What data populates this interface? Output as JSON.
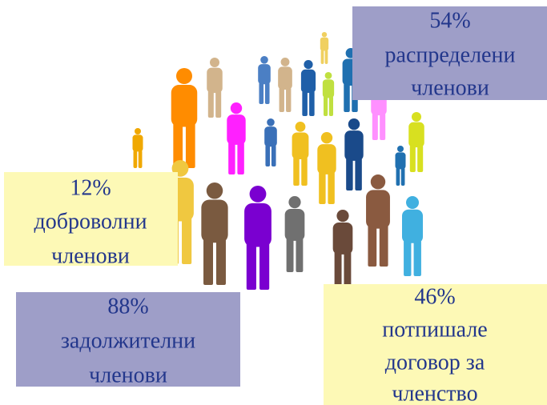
{
  "boxes": [
    {
      "lines": [
        "54%",
        "распределени",
        "членови"
      ]
    },
    {
      "lines": [
        "12%",
        "доброволни",
        "членови"
      ]
    },
    {
      "lines": [
        "88%",
        "задолжителни",
        "членови"
      ]
    },
    {
      "lines": [
        "46%",
        "потпишале",
        "договор за",
        "членство"
      ]
    }
  ]
}
